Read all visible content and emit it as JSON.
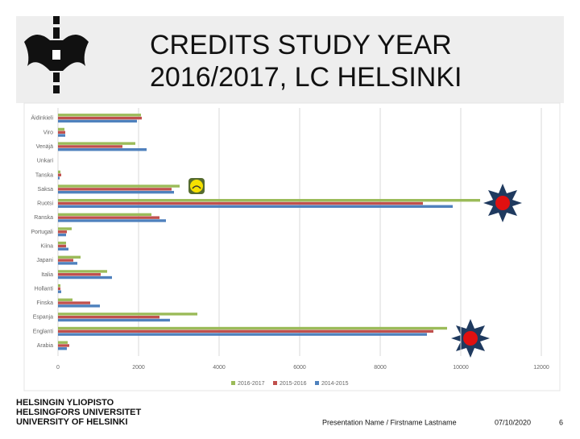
{
  "slide": {
    "title_lines": [
      "CREDITS STUDY YEAR",
      "2016/2017, LC HELSINKI"
    ],
    "university_lines": [
      "HELSINGIN YLIOPISTO",
      "HELSINGFORS UNIVERSITET",
      "UNIVERSITY OF HELSINKI"
    ],
    "presenter": "Presentation Name / Firstname Lastname",
    "date": "07/10/2020",
    "page": "6"
  },
  "chart_data": {
    "type": "hbar",
    "categories": [
      "Äidinkieli",
      "Viro",
      "Venäjä",
      "Unkari",
      "Tanska",
      "Saksa",
      "Ruotsi",
      "Ranska",
      "Portugali",
      "Kiina",
      "Japani",
      "Italia",
      "Hollanti",
      "Finska",
      "Espanja",
      "Englanti",
      "Arabia"
    ],
    "series": [
      {
        "name": "2016-2017",
        "color": "#9bbb59",
        "values": [
          2060,
          160,
          1920,
          0,
          60,
          3020,
          10480,
          2320,
          340,
          200,
          560,
          1220,
          60,
          360,
          3460,
          9660,
          240
        ]
      },
      {
        "name": "2015-2016",
        "color": "#c0504d",
        "values": [
          2080,
          180,
          1600,
          0,
          80,
          2820,
          9060,
          2520,
          220,
          200,
          380,
          1060,
          60,
          800,
          2520,
          9320,
          280
        ]
      },
      {
        "name": "2014-2015",
        "color": "#4f81bd",
        "values": [
          1960,
          180,
          2200,
          0,
          40,
          2880,
          9800,
          2680,
          200,
          260,
          480,
          1340,
          80,
          1040,
          2780,
          9160,
          220
        ]
      }
    ],
    "xlim": [
      0,
      12000
    ],
    "xticks": [
      0,
      2000,
      4000,
      6000,
      8000,
      10000,
      12000
    ],
    "grid": true,
    "legend": "bottom"
  }
}
